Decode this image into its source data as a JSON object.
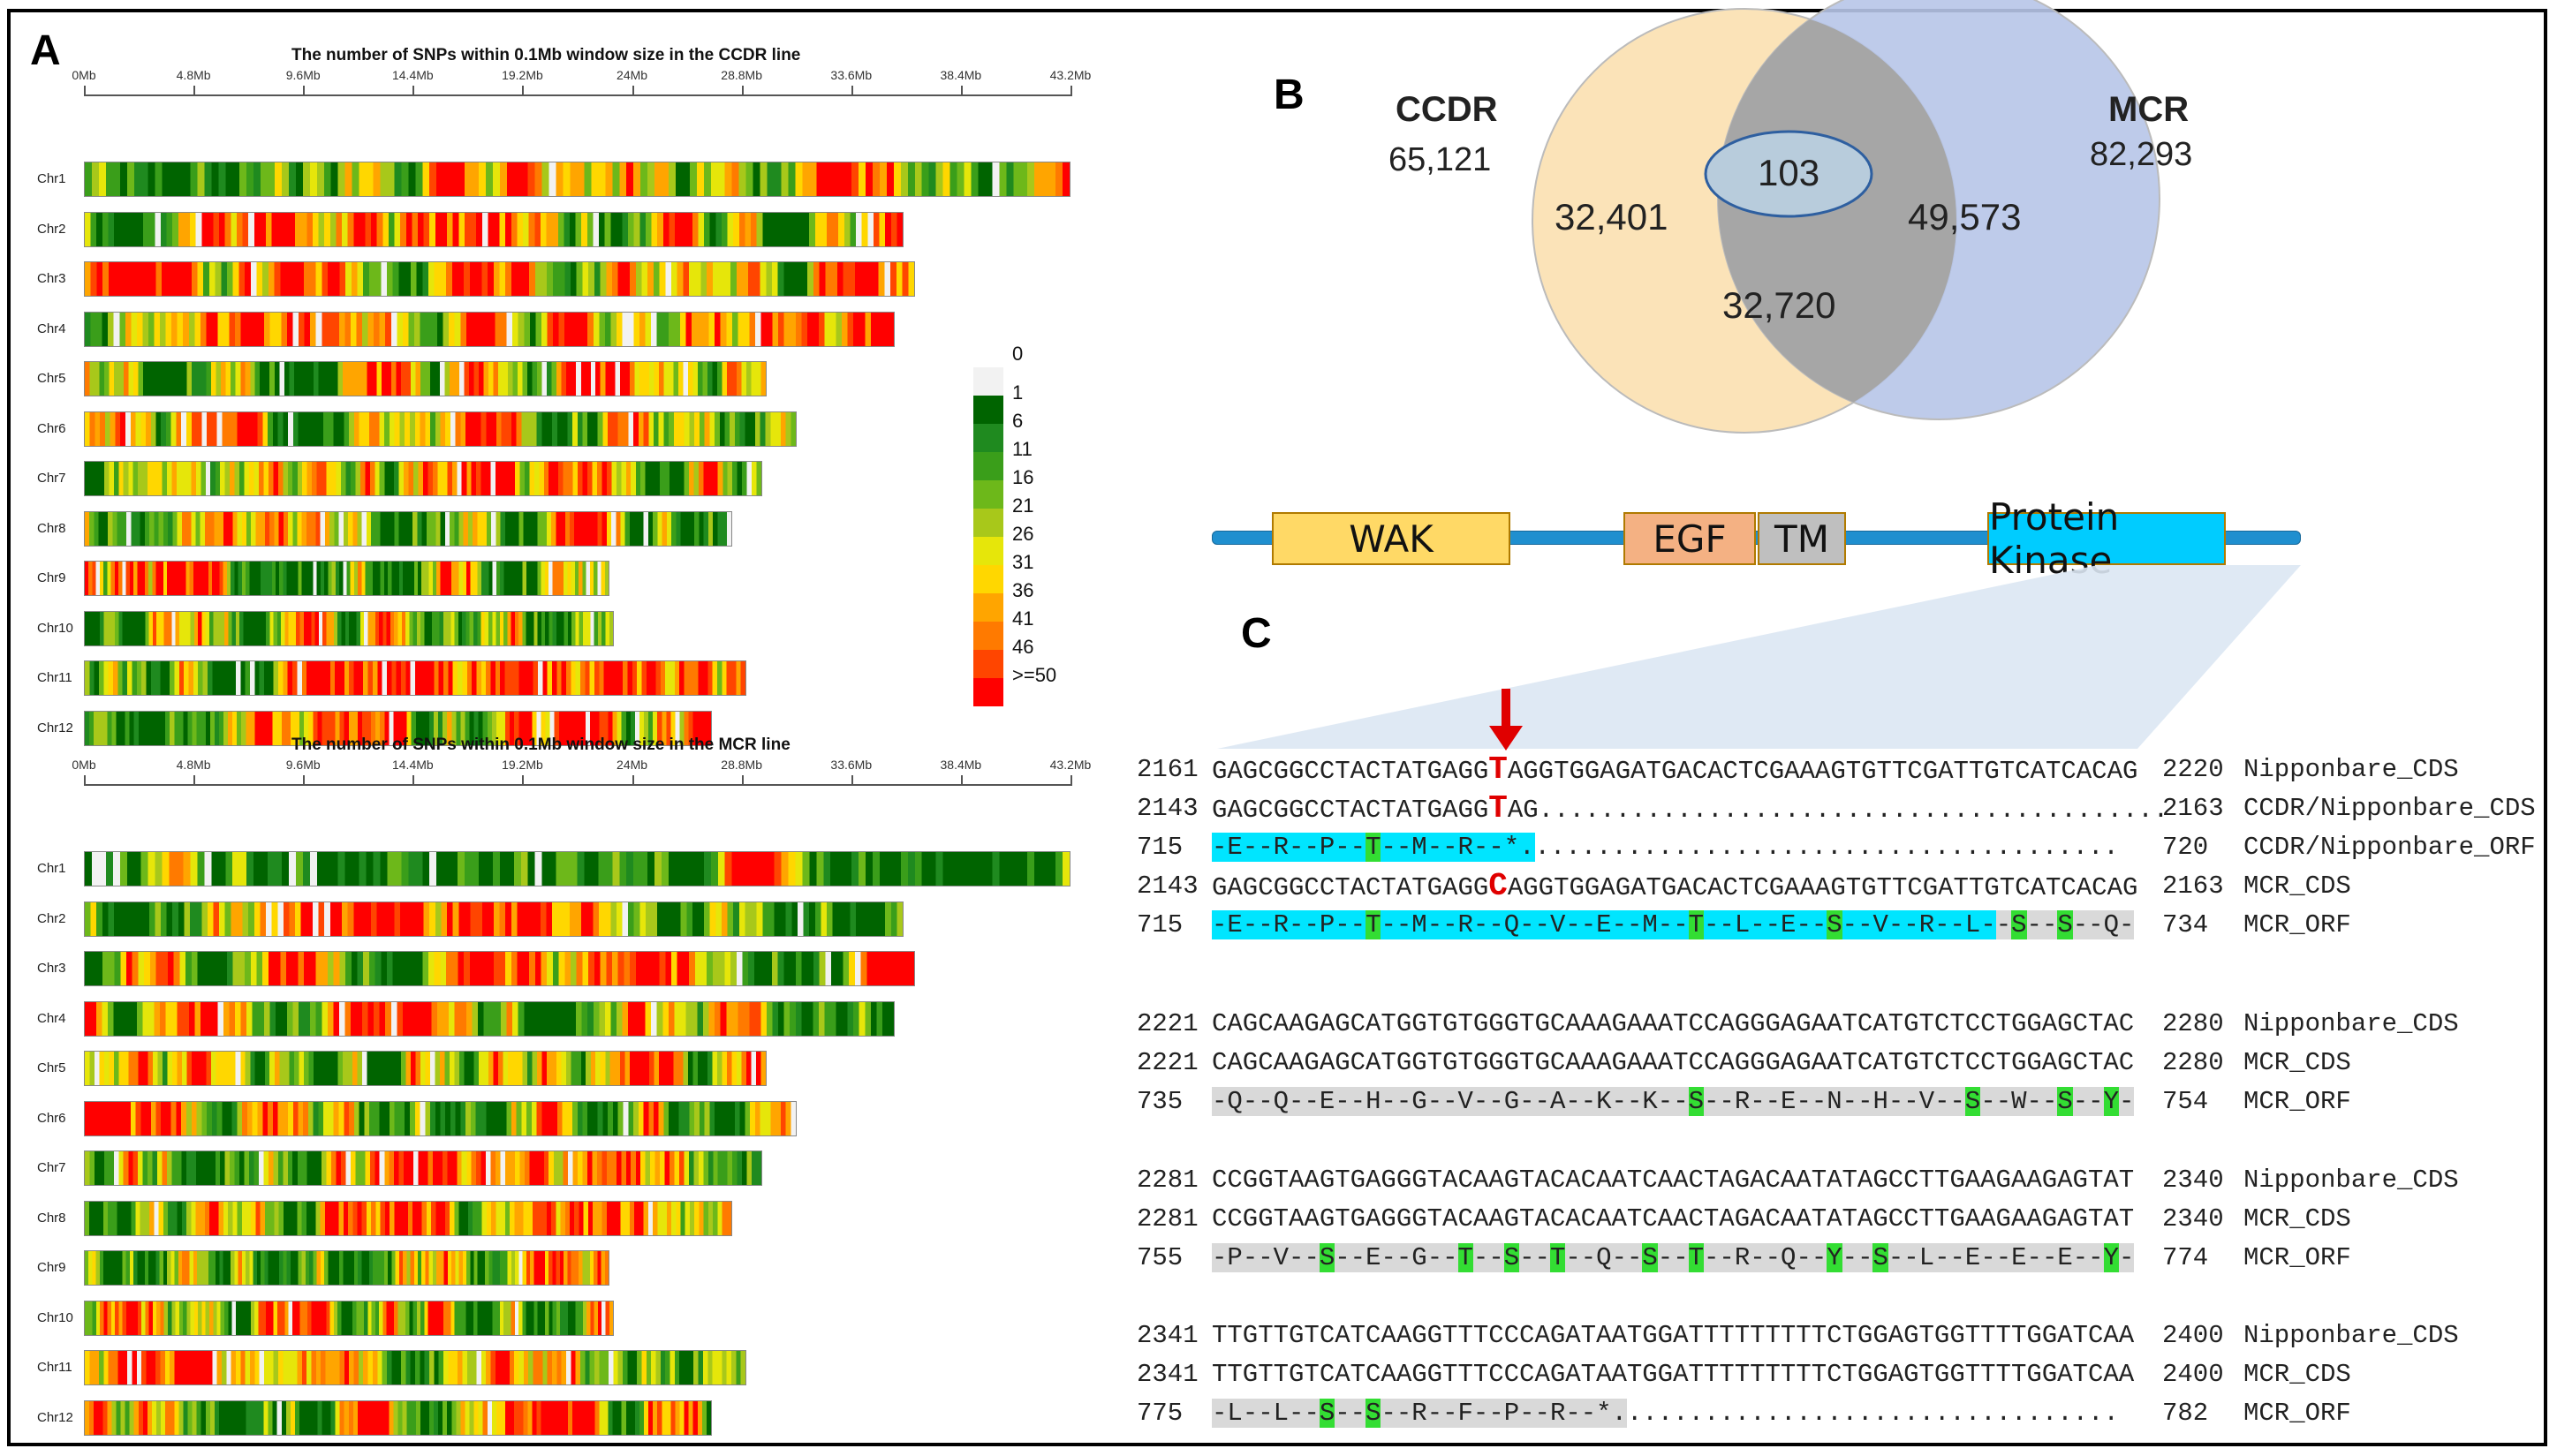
{
  "panels": {
    "a": "A",
    "b": "B",
    "c": "C"
  },
  "chart_data": [
    {
      "type": "heatmap",
      "title": "The number of SNPs within 0.1Mb window size in the CCDR line",
      "x_ticks": [
        "0Mb",
        "4.8Mb",
        "9.6Mb",
        "14.4Mb",
        "19.2Mb",
        "24Mb",
        "28.8Mb",
        "33.6Mb",
        "38.4Mb",
        "43.2Mb"
      ],
      "xlim_mb": [
        0,
        43.2
      ],
      "chromosomes": [
        "Chr1",
        "Chr2",
        "Chr3",
        "Chr4",
        "Chr5",
        "Chr6",
        "Chr7",
        "Chr8",
        "Chr9",
        "Chr10",
        "Chr11",
        "Chr12"
      ],
      "lengths_mb": [
        43.2,
        35.9,
        36.4,
        35.5,
        29.9,
        31.2,
        29.7,
        28.4,
        23.0,
        23.2,
        29.0,
        27.5
      ]
    },
    {
      "type": "heatmap",
      "title": "The number of SNPs within 0.1Mb window size in the MCR line",
      "x_ticks": [
        "0Mb",
        "4.8Mb",
        "9.6Mb",
        "14.4Mb",
        "19.2Mb",
        "24Mb",
        "28.8Mb",
        "33.6Mb",
        "38.4Mb",
        "43.2Mb"
      ],
      "xlim_mb": [
        0,
        43.2
      ],
      "chromosomes": [
        "Chr1",
        "Chr2",
        "Chr3",
        "Chr4",
        "Chr5",
        "Chr6",
        "Chr7",
        "Chr8",
        "Chr9",
        "Chr10",
        "Chr11",
        "Chr12"
      ],
      "lengths_mb": [
        43.2,
        35.9,
        36.4,
        35.5,
        29.9,
        31.2,
        29.7,
        28.4,
        23.0,
        23.2,
        29.0,
        27.5
      ]
    }
  ],
  "legend": {
    "labels": [
      "0",
      "1",
      "6",
      "11",
      "16",
      "21",
      "26",
      "31",
      "36",
      "41",
      "46",
      ">=50"
    ],
    "colors": [
      "#f2f2f2",
      "#006400",
      "#1f8a1f",
      "#3a9e1a",
      "#6db81a",
      "#a8c81a",
      "#e6e60a",
      "#ffd700",
      "#ffa500",
      "#ff7a00",
      "#ff4500",
      "#ff0000"
    ]
  },
  "venn": {
    "left_name": "CCDR",
    "left_total": "65,121",
    "right_name": "MCR",
    "right_total": "82,293",
    "left_only": "32,401",
    "right_only": "49,573",
    "overlap": "32,720",
    "highlight": "103",
    "colors": {
      "left": "#fbe3b8",
      "right": "#b7c5e8",
      "overlap": "#a6a6a6",
      "highlight": "#b8ccdc"
    }
  },
  "gene": {
    "domains": [
      "WAK",
      "EGF",
      "TM",
      "Protein Kinase"
    ],
    "colors": {
      "line": "#1f8fcf",
      "wak": "#ffd966",
      "egf": "#f4b183",
      "tm": "#bfbfbf",
      "kinase": "#00ccff"
    }
  },
  "alignment": {
    "blocks": [
      {
        "rows": [
          {
            "start": "2161",
            "seq": "GAGCGGCCTACTATGAGG|T|AGGTGGAGATGACACTCGAAAGTGTTCGATTGTCATCACAG",
            "end": "2220",
            "name": "Nipponbare_CDS",
            "mark": "T"
          },
          {
            "start": "2143",
            "seq": "GAGCGGCCTACTATGAGG|T|AG.........................................",
            "end": "2163",
            "name": "CCDR/Nipponbare_CDS",
            "mark": "T"
          },
          {
            "start": "715",
            "aa": "-E--R--P--T--M--R--*.",
            "dots": "......................................",
            "end": "720",
            "name": "CCDR/Nipponbare_ORF"
          },
          {
            "start": "2143",
            "seq": "GAGCGGCCTACTATGAGG|C|AGGTGGAGATGACACTCGAAAGTGTTCGATTGTCATCACAG",
            "end": "2163",
            "name": "MCR_CDS",
            "mark": "C"
          },
          {
            "start": "715",
            "aa": "-E--R--P--T--M--R--Q--V--E--M--T--L--E--S--V--R--L--S--S--Q-",
            "end": "734",
            "name": "MCR_ORF"
          }
        ]
      },
      {
        "rows": [
          {
            "start": "2221",
            "seq": "CAGCAAGAGCATGGTGTGGGTGCAAAGAAATCCAGGGAGAATCATGTCTCCTGGAGCTAC",
            "end": "2280",
            "name": "Nipponbare_CDS"
          },
          {
            "start": "2221",
            "seq": "CAGCAAGAGCATGGTGTGGGTGCAAAGAAATCCAGGGAGAATCATGTCTCCTGGAGCTAC",
            "end": "2280",
            "name": "MCR_CDS"
          },
          {
            "start": "735",
            "aa": "-Q--Q--E--H--G--V--G--A--K--K--S--R--E--N--H--V--S--W--S--Y-",
            "end": "754",
            "name": "MCR_ORF"
          }
        ]
      },
      {
        "rows": [
          {
            "start": "2281",
            "seq": "CCGGTAAGTGAGGGTACAAGTACACAATCAACTAGACAATATAGCCTTGAAGAAGAGTAT",
            "end": "2340",
            "name": "Nipponbare_CDS"
          },
          {
            "start": "2281",
            "seq": "CCGGTAAGTGAGGGTACAAGTACACAATCAACTAGACAATATAGCCTTGAAGAAGAGTAT",
            "end": "2340",
            "name": "MCR_CDS"
          },
          {
            "start": "755",
            "aa": "-P--V--S--E--G--T--S--T--Q--S--T--R--Q--Y--S--L--E--E--E--Y-",
            "end": "774",
            "name": "MCR_ORF"
          }
        ]
      },
      {
        "rows": [
          {
            "start": "2341",
            "seq": "TTGTTGTCATCAAGGTTTCCCAGATAATGGATTTTTTTTTCTGGAGTGGTTTTGGATCAA",
            "end": "2400",
            "name": "Nipponbare_CDS"
          },
          {
            "start": "2341",
            "seq": "TTGTTGTCATCAAGGTTTCCCAGATAATGGATTTTTTTTTCTGGAGTGGTTTTGGATCAA",
            "end": "2400",
            "name": "MCR_CDS"
          },
          {
            "start": "775",
            "aa": "-L--L--S--S--R--F--P--R--*.",
            "dots": "................................",
            "end": "782",
            "name": "MCR_ORF"
          }
        ]
      }
    ]
  }
}
